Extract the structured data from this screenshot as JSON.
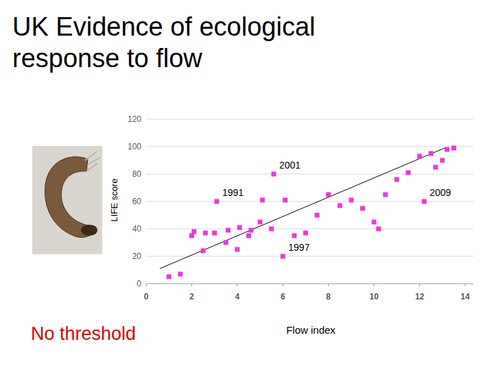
{
  "chart_data": {
    "type": "scatter",
    "title": "UK Evidence of ecological response to flow",
    "x_label": "Flow index",
    "y_label": "LIFE score",
    "annotation": "No threshold",
    "color": "#e83ad8",
    "marker": "square",
    "grid": true,
    "xlim": [
      0,
      14
    ],
    "ylim": [
      0,
      120
    ],
    "xticks": [
      0,
      2,
      4,
      6,
      8,
      10,
      12,
      14
    ],
    "yticks": [
      0,
      20,
      40,
      60,
      80,
      100,
      120
    ],
    "x": [
      1.0,
      1.5,
      2.0,
      2.1,
      2.5,
      2.6,
      3.0,
      3.1,
      3.5,
      3.6,
      4.0,
      4.1,
      4.5,
      4.6,
      5.0,
      5.1,
      5.5,
      5.6,
      6.0,
      6.1,
      6.5,
      7.0,
      7.5,
      8.0,
      8.5,
      9.0,
      9.5,
      10.0,
      10.2,
      10.5,
      11.0,
      11.5,
      12.0,
      12.2,
      12.5,
      12.7,
      13.0,
      13.2,
      13.5
    ],
    "values": [
      5,
      7,
      35,
      38,
      24,
      37,
      37,
      60,
      30,
      39,
      25,
      41,
      35,
      39,
      45,
      61,
      40,
      80,
      20,
      61,
      35,
      37,
      50,
      65,
      57,
      61,
      55,
      45,
      40,
      65,
      76,
      81,
      93,
      60,
      95,
      85,
      90,
      98,
      99
    ],
    "point_labels": [
      null,
      null,
      null,
      null,
      null,
      null,
      null,
      "1991",
      null,
      null,
      null,
      null,
      null,
      null,
      null,
      null,
      null,
      "2001",
      "1997",
      null,
      null,
      null,
      null,
      null,
      null,
      null,
      null,
      null,
      null,
      null,
      null,
      null,
      null,
      "2009",
      null,
      null,
      null,
      null,
      null
    ],
    "trend": {
      "x": [
        0.6,
        13.1
      ],
      "y": [
        11,
        99
      ]
    }
  }
}
